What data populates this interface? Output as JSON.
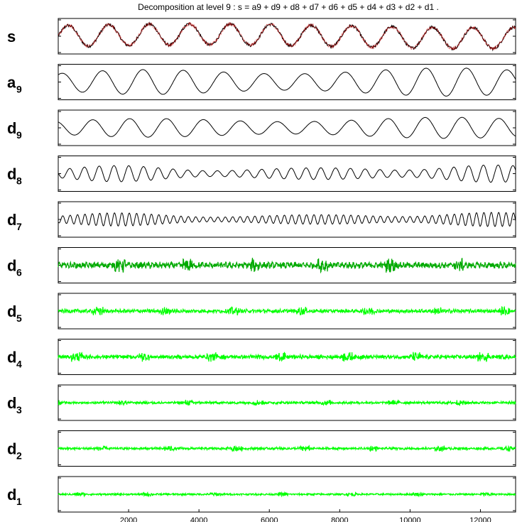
{
  "chart_data": {
    "type": "line",
    "title": "Decomposition at level 9 : s = a9 + d9 + d8 + d7 + d6 + d5 + d4 + d3 + d2 + d1 .",
    "xlabel": "",
    "ylabel": "",
    "xlim": [
      0,
      13000
    ],
    "x_ticks": [
      2000,
      4000,
      6000,
      8000,
      10000,
      12000
    ],
    "x_tick_labels": [
      "2000",
      "4000",
      "6000",
      "8000",
      "10000",
      "12000"
    ],
    "grid": false,
    "legend": "none",
    "rows": [
      {
        "label": "s",
        "sub": "",
        "kind": "signal",
        "color": "#000000",
        "noise_color": "#cc0000",
        "amplitude": 0.7,
        "period": 1150,
        "noise": 0.12
      },
      {
        "label": "a",
        "sub": "9",
        "kind": "smooth",
        "color": "#000000",
        "amplitude": 0.8,
        "period": 1150,
        "noise": 0
      },
      {
        "label": "d",
        "sub": "9",
        "kind": "smooth",
        "color": "#000000",
        "amplitude": 0.6,
        "period": 1050,
        "noise": 0
      },
      {
        "label": "d",
        "sub": "8",
        "kind": "oscillation",
        "color": "#000000",
        "amplitude": 0.55,
        "period": 420,
        "noise": 0
      },
      {
        "label": "d",
        "sub": "7",
        "kind": "oscillation",
        "color": "#000000",
        "amplitude": 0.45,
        "period": 210,
        "noise": 0
      },
      {
        "label": "d",
        "sub": "6",
        "kind": "dense",
        "color": "#000000",
        "fill_color": "#00aa00",
        "amplitude": 0.3,
        "period": 110,
        "noise": 0.2
      },
      {
        "label": "d",
        "sub": "5",
        "kind": "dense",
        "color": "#000000",
        "fill_color": "#00ff00",
        "amplitude": 0.18,
        "period": 60,
        "noise": 0.25
      },
      {
        "label": "d",
        "sub": "4",
        "kind": "dense",
        "color": "#000000",
        "fill_color": "#00ff00",
        "amplitude": 0.2,
        "period": 30,
        "noise": 0.3
      },
      {
        "label": "d",
        "sub": "3",
        "kind": "dense",
        "color": "#00ff00",
        "fill_color": "#00ff00",
        "amplitude": 0.12,
        "period": 15,
        "noise": 0.3
      },
      {
        "label": "d",
        "sub": "2",
        "kind": "dense",
        "color": "#00ff00",
        "fill_color": "#00ff00",
        "amplitude": 0.12,
        "period": 8,
        "noise": 0.3
      },
      {
        "label": "d",
        "sub": "1",
        "kind": "dense",
        "color": "#00ff00",
        "fill_color": "#00ff00",
        "amplitude": 0.1,
        "period": 4,
        "noise": 0.3
      }
    ]
  }
}
